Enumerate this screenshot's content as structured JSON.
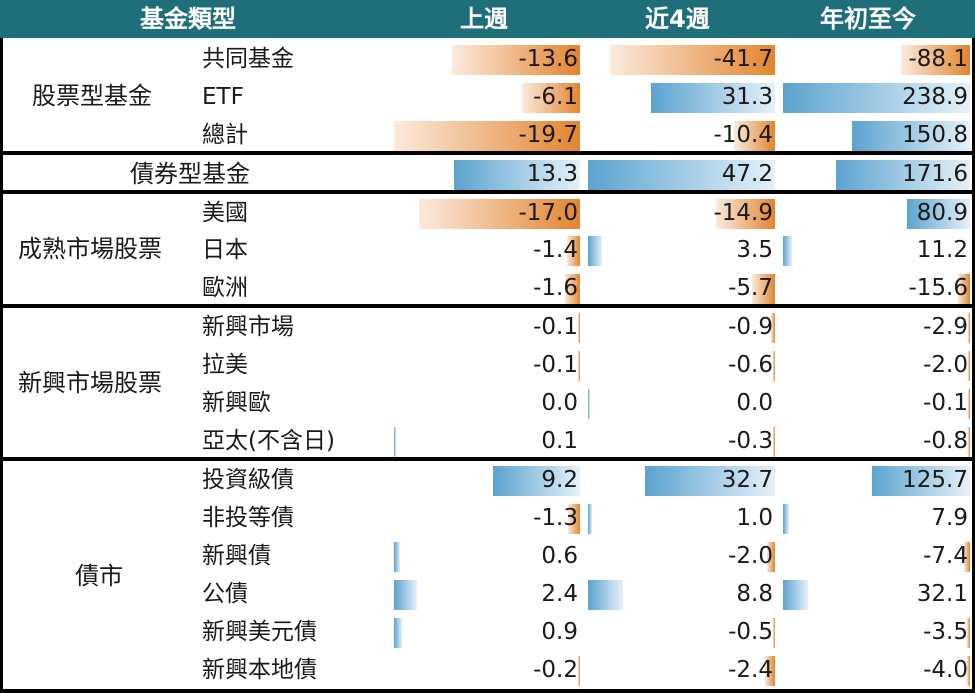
{
  "header": {
    "col_type": "基金類型",
    "col_week": "上週",
    "col_4w": "近4週",
    "col_ytd": "年初至今"
  },
  "colors": {
    "header_bg": "#1f6f7b",
    "positive_bar": "#5ba3cf",
    "negative_bar": "#e2852f"
  },
  "chart_data": {
    "type": "table",
    "columns": [
      "上週",
      "近4週",
      "年初至今"
    ],
    "groups": [
      {
        "name": "股票型基金",
        "rows": [
          {
            "label": "共同基金",
            "values": [
              -13.6,
              -41.7,
              -88.1
            ],
            "text": [
              "-13.6",
              "-41.7",
              "-88.1"
            ]
          },
          {
            "label": "ETF",
            "values": [
              -6.1,
              31.3,
              238.9
            ],
            "text": [
              "-6.1",
              "31.3",
              "238.9"
            ]
          },
          {
            "label": "總計",
            "values": [
              -19.7,
              -10.4,
              150.8
            ],
            "text": [
              "-19.7",
              "-10.4",
              "150.8"
            ]
          }
        ]
      },
      {
        "name": "債券型基金",
        "rows": [
          {
            "label": "",
            "values": [
              13.3,
              47.2,
              171.6
            ],
            "text": [
              "13.3",
              "47.2",
              "171.6"
            ]
          }
        ]
      },
      {
        "name": "成熟市場股票",
        "rows": [
          {
            "label": "美國",
            "values": [
              -17.0,
              -14.9,
              80.9
            ],
            "text": [
              "-17.0",
              "-14.9",
              "80.9"
            ]
          },
          {
            "label": "日本",
            "values": [
              -1.4,
              3.5,
              11.2
            ],
            "text": [
              "-1.4",
              "3.5",
              "11.2"
            ]
          },
          {
            "label": "歐洲",
            "values": [
              -1.6,
              -5.7,
              -15.6
            ],
            "text": [
              "-1.6",
              "-5.7",
              "-15.6"
            ]
          }
        ]
      },
      {
        "name": "新興市場股票",
        "rows": [
          {
            "label": "新興市場",
            "values": [
              -0.1,
              -0.9,
              -2.9
            ],
            "text": [
              "-0.1",
              "-0.9",
              "-2.9"
            ]
          },
          {
            "label": "拉美",
            "values": [
              -0.1,
              -0.6,
              -2.0
            ],
            "text": [
              "-0.1",
              "-0.6",
              "-2.0"
            ]
          },
          {
            "label": "新興歐",
            "values": [
              0.0,
              0.0,
              -0.1
            ],
            "text": [
              "0.0",
              "0.0",
              "-0.1"
            ]
          },
          {
            "label": "亞太(不含日)",
            "values": [
              0.1,
              -0.3,
              -0.8
            ],
            "text": [
              "0.1",
              "-0.3",
              "-0.8"
            ]
          }
        ]
      },
      {
        "name": "債市",
        "rows": [
          {
            "label": "投資級債",
            "values": [
              9.2,
              32.7,
              125.7
            ],
            "text": [
              "9.2",
              "32.7",
              "125.7"
            ]
          },
          {
            "label": "非投等債",
            "values": [
              -1.3,
              1.0,
              7.9
            ],
            "text": [
              "-1.3",
              "1.0",
              "7.9"
            ]
          },
          {
            "label": "新興債",
            "values": [
              0.6,
              -2.0,
              -7.4
            ],
            "text": [
              "0.6",
              "-2.0",
              "-7.4"
            ]
          },
          {
            "label": "公債",
            "values": [
              2.4,
              8.8,
              32.1
            ],
            "text": [
              "2.4",
              "8.8",
              "32.1"
            ]
          },
          {
            "label": "新興美元債",
            "values": [
              0.9,
              -0.5,
              -3.5
            ],
            "text": [
              "0.9",
              "-0.5",
              "-3.5"
            ]
          },
          {
            "label": "新興本地債",
            "values": [
              -0.2,
              -2.4,
              -4.0
            ],
            "text": [
              "-0.2",
              "-2.4",
              "-4.0"
            ]
          }
        ]
      }
    ]
  }
}
